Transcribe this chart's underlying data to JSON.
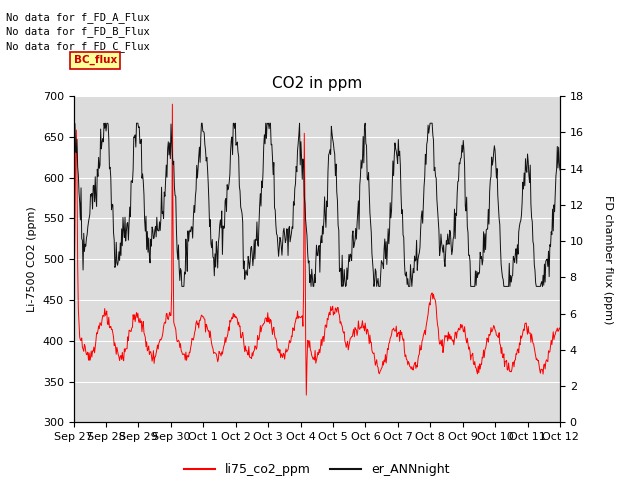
{
  "title": "CO2 in ppm",
  "ylabel_left": "Li-7500 CO2 (ppm)",
  "ylabel_right": "FD chamber flux (ppm)",
  "ylim_left": [
    300,
    700
  ],
  "ylim_right": [
    0,
    18
  ],
  "yticks_left": [
    300,
    350,
    400,
    450,
    500,
    550,
    600,
    650,
    700
  ],
  "yticks_right": [
    0,
    2,
    4,
    6,
    8,
    10,
    12,
    14,
    16,
    18
  ],
  "bg_color": "#dcdcdc",
  "fig_bg_color": "#ffffff",
  "grid_color": "#ffffff",
  "line_color_red": "#ff0000",
  "line_color_black": "#111111",
  "legend_label_red": "li75_co2_ppm",
  "legend_label_black": "er_ANNnight",
  "text_lines": [
    "No data for f_FD_A_Flux",
    "No data for f_FD_B_Flux",
    "No data for f_FD_C_Flux"
  ],
  "bc_flux_label": "BC_flux",
  "bc_flux_color": "#ffff99",
  "bc_flux_border": "#cc0000",
  "x_tick_labels": [
    "Sep 27",
    "Sep 28",
    "Sep 29",
    "Sep 30",
    "Oct 1",
    "Oct 2",
    "Oct 3",
    "Oct 4",
    "Oct 5",
    "Oct 6",
    "Oct 7",
    "Oct 8",
    "Oct 9",
    "Oct 10",
    "Oct 11",
    "Oct 12"
  ]
}
